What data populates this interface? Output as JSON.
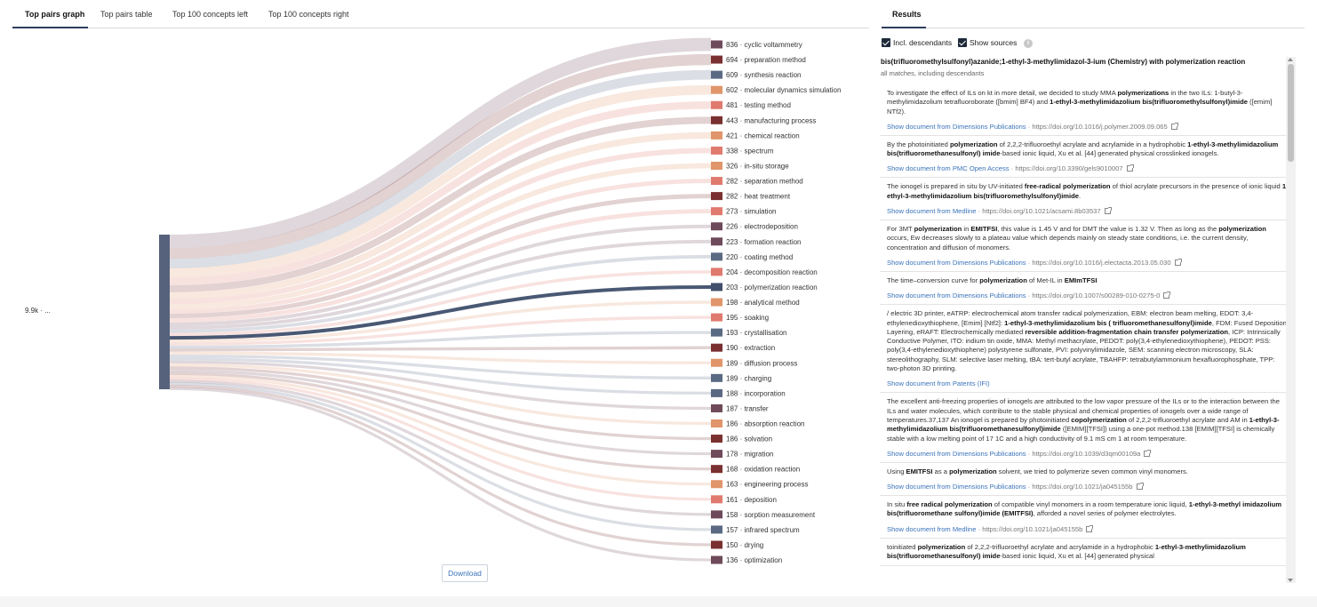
{
  "tabs": [
    {
      "label": "Top pairs graph",
      "active": true
    },
    {
      "label": "Top pairs table",
      "active": false
    },
    {
      "label": "Top 100 concepts left",
      "active": false
    },
    {
      "label": "Top 100 concepts right",
      "active": false
    }
  ],
  "results_tab": {
    "label": "Results"
  },
  "graph": {
    "source_label": "9.9k · ...",
    "source_color": "#56627c",
    "highlight_index": 16,
    "targets": [
      {
        "count": 836,
        "label": "cyclic voltammetry",
        "color": "#6e4a5a"
      },
      {
        "count": 694,
        "label": "preparation method",
        "color": "#7a3030"
      },
      {
        "count": 609,
        "label": "synthesis reaction",
        "color": "#5a6a82"
      },
      {
        "count": 602,
        "label": "molecular dynamics simulation",
        "color": "#e0956a"
      },
      {
        "count": 481,
        "label": "testing method",
        "color": "#e07a6e"
      },
      {
        "count": 443,
        "label": "manufacturing process",
        "color": "#7a3030"
      },
      {
        "count": 421,
        "label": "chemical reaction",
        "color": "#e0956a"
      },
      {
        "count": 338,
        "label": "spectrum",
        "color": "#e07a6e"
      },
      {
        "count": 326,
        "label": "in-situ storage",
        "color": "#e0956a"
      },
      {
        "count": 282,
        "label": "separation method",
        "color": "#e07a6e"
      },
      {
        "count": 282,
        "label": "heat treatment",
        "color": "#7a3030"
      },
      {
        "count": 273,
        "label": "simulation",
        "color": "#e07a6e"
      },
      {
        "count": 226,
        "label": "electrodeposition",
        "color": "#6e4a5a"
      },
      {
        "count": 223,
        "label": "formation reaction",
        "color": "#6e4a5a"
      },
      {
        "count": 220,
        "label": "coating method",
        "color": "#5a6a82"
      },
      {
        "count": 204,
        "label": "decomposition reaction",
        "color": "#e07a6e"
      },
      {
        "count": 203,
        "label": "polymerization reaction",
        "color": "#3f4f6c"
      },
      {
        "count": 198,
        "label": "analytical method",
        "color": "#e0956a"
      },
      {
        "count": 195,
        "label": "soaking",
        "color": "#e07a6e"
      },
      {
        "count": 193,
        "label": "crystallisation",
        "color": "#5a6a82"
      },
      {
        "count": 190,
        "label": "extraction",
        "color": "#7a3030"
      },
      {
        "count": 189,
        "label": "diffusion process",
        "color": "#e0956a"
      },
      {
        "count": 189,
        "label": "charging",
        "color": "#5a6a82"
      },
      {
        "count": 188,
        "label": "incorporation",
        "color": "#5a6a82"
      },
      {
        "count": 187,
        "label": "transfer",
        "color": "#6e4a5a"
      },
      {
        "count": 186,
        "label": "absorption reaction",
        "color": "#e0956a"
      },
      {
        "count": 186,
        "label": "solvation",
        "color": "#7a3030"
      },
      {
        "count": 178,
        "label": "migration",
        "color": "#6e4a5a"
      },
      {
        "count": 168,
        "label": "oxidation reaction",
        "color": "#7a3030"
      },
      {
        "count": 163,
        "label": "engineering process",
        "color": "#e0956a"
      },
      {
        "count": 161,
        "label": "deposition",
        "color": "#e07a6e"
      },
      {
        "count": 158,
        "label": "sorption measurement",
        "color": "#6e4a5a"
      },
      {
        "count": 157,
        "label": "infrared spectrum",
        "color": "#5a6a82"
      },
      {
        "count": 150,
        "label": "drying",
        "color": "#7a3030"
      },
      {
        "count": 136,
        "label": "optimization",
        "color": "#6e4a5a"
      }
    ],
    "download_label": "Download"
  },
  "options": {
    "incl_descendants": "Incl. descendants",
    "show_sources": "Show sources",
    "info_icon": "i"
  },
  "results": {
    "title": "bis(trifluoromethylsulfonyl)azanide;1-ethyl-3-methylimidazol-3-ium (Chemistry) with polymerization reaction",
    "subtitle": "all matches, including descendants",
    "items": [
      {
        "html": "To investigate the effect of ILs on kt in more detail, we decided to study MMA <b>polymerizations</b> in the two ILs: 1-butyl-3-methylimidazolium tetrafluoroborate ([bmim] BF4) and <b>1-ethyl-3-methylimidazolium bis(trifluoromethylsulfonyl)imide</b> ([emim] NTf2).",
        "source": "Show document from Dimensions Publications",
        "doi": "https://doi.org/10.1016/j.polymer.2009.09.065"
      },
      {
        "html": "By the photoinitiated <b>polymerization</b> of 2,2,2-trifluoroethyl acrylate and acrylamide in a hydrophobic <b>1-ethyl-3-methylimidazolium bis(trifluoromethanesulfonyl) imide</b>-based ionic liquid, Xu et al. [44] generated physical crosslinked ionogels.",
        "source": "Show document from PMC Open Access",
        "doi": "https://doi.org/10.3390/gels9010007"
      },
      {
        "html": "The ionogel is prepared in situ by UV-initiated <b>free-radical polymerization</b> of thiol acrylate precursors in the presence of ionic liquid <b>1-ethyl-3-methylimidazolium bis(trifluoromethylsulfonyl)imide</b>.",
        "source": "Show document from Medline",
        "doi": "https://doi.org/10.1021/acsami.8b03537"
      },
      {
        "html": "For 3MT <b>polymerization</b> in <b>EMITFSI</b>, this value is 1.45 V and for DMT the value is 1.32 V. Then as long as the <b>polymerization</b> occurs, Ew decreases slowly to a plateau value which depends mainly on steady state conditions, i.e. the current density, concentration and diffusion of monomers.",
        "source": "Show document from Dimensions Publications",
        "doi": "https://doi.org/10.1016/j.electacta.2013.05.030"
      },
      {
        "html": "The time–conversion curve for <b>polymerization</b> of Met-IL in <b>EMImTFSI</b>",
        "source": "Show document from Dimensions Publications",
        "doi": "https://doi.org/10.1007/s00289-010-0275-0"
      },
      {
        "html": "/ electric 3D printer, eATRP: electrochemical atom transfer radical polymerization, EBM: electron beam melting, EDOT: 3,4-ethylenedioxythiophene, [Emim] [Ntf2]: <b>1-ethyl-3-methylimidazolium bis ( trifluoromethanesulfonyl)imide</b>, FDM: Fused Deposition Layering, eRAFT: Electrochemically mediated <b>reversible addition-fragmentation chain transfer polymerization</b>, ICP: Intrinsically Conductive Polymer, ITO: indium tin oxide, MMA: Methyl methacrylate, PEDOT: poly(3,4-ethylenedioxythiophene), PEDOT: PSS: poly(3,4-ethylenedioxythiophene) polystyrene sulfonate, PVI: polyvinylimidazole, SEM: scanning electron microscopy, SLA: stereolithography, SLM: selective laser melting, tBA: tert-butyl acrylate, TBAHFP: tetrabutylammonium hexafluorophosphate, TPP: two-photon 3D printing.",
        "source": "Show document from Patents (IFI)",
        "doi": ""
      },
      {
        "html": "The excellent anti-freezing properties of ionogels are attributed to the low vapor pressure of the ILs or to the interaction between the ILs and water molecules, which contribute to the stable physical and chemical properties of ionogels over a wide range of temperatures.37,137 An ionogel is prepared by photoinitiated <b>copolymerization</b> of 2,2,2-trifluoroethyl acrylate and AM in <b>1-ethyl-3-methylimidazolium bis(trifluoromethanesulfonyl)imide</b> ([EMIM][TFSI]) using a one-pot method.138 [EMIM][TFSI] is chemically stable with a low melting point of 17 1C and a high conductivity of 9.1 mS cm 1 at room temperature.",
        "source": "Show document from Dimensions Publications",
        "doi": "https://doi.org/10.1039/d3qm00109a"
      },
      {
        "html": "Using <b>EMITFSI</b> as a <b>polymerization</b> solvent, we tried to polymerize seven common vinyl monomers.",
        "source": "Show document from Dimensions Publications",
        "doi": "https://doi.org/10.1021/ja045155b"
      },
      {
        "html": "In situ <b>free radical polymerization</b> of compatible vinyl monomers in a room temperature ionic liquid, <b>1-ethyl-3-methyl imidazolium bis(trifluoromethane sulfonyl)imide (EMITFSI)</b>, afforded a novel series of polymer electrolytes.",
        "source": "Show document from Medline",
        "doi": "https://doi.org/10.1021/ja045155b"
      },
      {
        "html": "toinitiated <b>polymerization</b> of 2,2,2-trifluoroethyl acrylate and acrylamide in a hydrophobic <b>1-ethyl-3-methylimidazolium bis(trifluoromethanesulfonyl) imide</b>-based ionic liquid, Xu et al. [44] generated physical",
        "source": "",
        "doi": ""
      }
    ]
  }
}
